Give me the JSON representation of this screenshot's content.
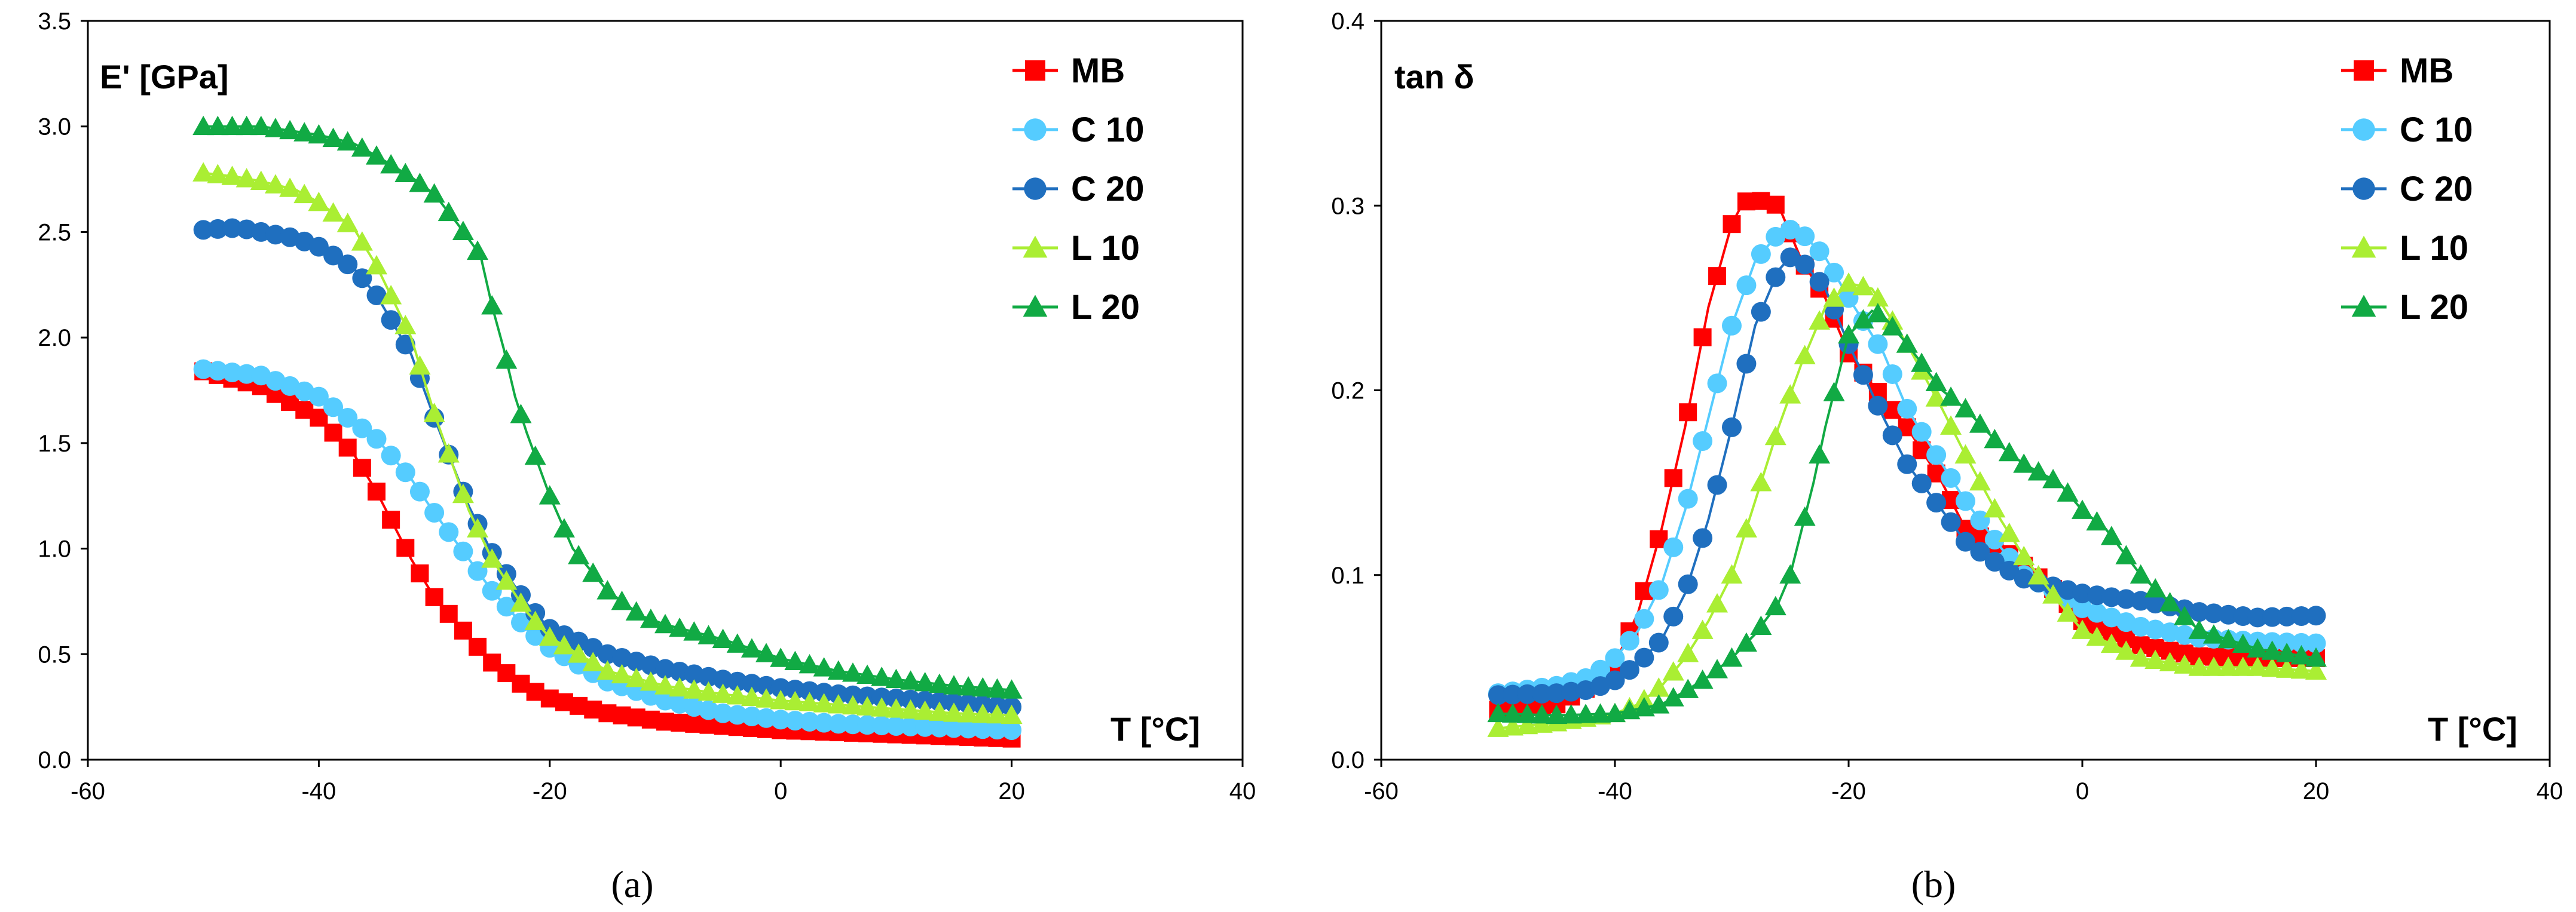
{
  "chart_data": [
    {
      "type": "line",
      "panel": "a",
      "caption": "(a)",
      "ylabel": "E' [GPa]",
      "xlabel": "T [°C]",
      "xlim": [
        -60,
        40
      ],
      "ylim": [
        0,
        3.5
      ],
      "xticks": [
        "-60",
        "-40",
        "-20",
        "0",
        "20",
        "40"
      ],
      "yticks": [
        "0.0",
        "0.5",
        "1.0",
        "1.5",
        "2.0",
        "2.5",
        "3.0",
        "3.5"
      ],
      "legend": "top-right",
      "series": [
        {
          "name": "MB",
          "color": "#ff0000",
          "marker": "square",
          "x": [
            -50,
            -45,
            -40,
            -37,
            -35,
            -32,
            -30,
            -27,
            -25,
            -22,
            -20,
            -15,
            -10,
            -5,
            0,
            5,
            10,
            15,
            20
          ],
          "y": [
            1.84,
            1.77,
            1.62,
            1.45,
            1.27,
            0.95,
            0.77,
            0.58,
            0.46,
            0.34,
            0.29,
            0.22,
            0.18,
            0.16,
            0.14,
            0.13,
            0.12,
            0.11,
            0.1
          ]
        },
        {
          "name": "C 10",
          "color": "#55ccff",
          "marker": "circle",
          "x": [
            -50,
            -45,
            -40,
            -35,
            -32,
            -30,
            -27,
            -25,
            -22,
            -20,
            -15,
            -10,
            -5,
            0,
            5,
            10,
            15,
            20
          ],
          "y": [
            1.85,
            1.82,
            1.72,
            1.52,
            1.33,
            1.17,
            0.95,
            0.8,
            0.62,
            0.53,
            0.37,
            0.28,
            0.22,
            0.19,
            0.17,
            0.16,
            0.15,
            0.14
          ]
        },
        {
          "name": "C 20",
          "color": "#1f6fbf",
          "marker": "circle",
          "x": [
            -50,
            -47,
            -45,
            -42,
            -40,
            -37,
            -35,
            -32,
            -30,
            -27,
            -25,
            -22,
            -20,
            -15,
            -10,
            -5,
            0,
            5,
            10,
            15,
            20
          ],
          "y": [
            2.51,
            2.52,
            2.5,
            2.47,
            2.43,
            2.33,
            2.2,
            1.92,
            1.62,
            1.2,
            0.98,
            0.74,
            0.62,
            0.5,
            0.43,
            0.38,
            0.34,
            0.31,
            0.29,
            0.27,
            0.25
          ]
        },
        {
          "name": "L 10",
          "color": "#aaee33",
          "marker": "triangle",
          "x": [
            -50,
            -47,
            -45,
            -42,
            -40,
            -37,
            -35,
            -32,
            -30,
            -27,
            -25,
            -22,
            -20,
            -15,
            -10,
            -5,
            0,
            5,
            10,
            15,
            20
          ],
          "y": [
            2.78,
            2.76,
            2.74,
            2.7,
            2.64,
            2.52,
            2.34,
            2.0,
            1.64,
            1.18,
            0.95,
            0.7,
            0.58,
            0.42,
            0.35,
            0.31,
            0.28,
            0.26,
            0.24,
            0.22,
            0.21
          ]
        },
        {
          "name": "L 20",
          "color": "#11aa44",
          "marker": "triangle",
          "x": [
            -50,
            -45,
            -40,
            -37,
            -35,
            -32,
            -30,
            -28,
            -26,
            -25,
            -24,
            -23,
            -22,
            -20,
            -18,
            -15,
            -12,
            -10,
            -5,
            0,
            5,
            10,
            15,
            20
          ],
          "y": [
            3.0,
            3.0,
            2.96,
            2.92,
            2.86,
            2.76,
            2.68,
            2.54,
            2.39,
            2.15,
            1.95,
            1.72,
            1.55,
            1.25,
            1.0,
            0.8,
            0.68,
            0.64,
            0.57,
            0.48,
            0.42,
            0.38,
            0.35,
            0.33
          ]
        }
      ]
    },
    {
      "type": "line",
      "panel": "b",
      "caption": "(b)",
      "ylabel": "tan δ",
      "xlabel": "T [°C]",
      "xlim": [
        -60,
        40
      ],
      "ylim": [
        0,
        0.4
      ],
      "xticks": [
        "-60",
        "-40",
        "-20",
        "0",
        "20",
        "40"
      ],
      "yticks": [
        "0.0",
        "0.1",
        "0.2",
        "0.3",
        "0.4"
      ],
      "legend": "top-right",
      "series": [
        {
          "name": "MB",
          "color": "#ff0000",
          "marker": "square",
          "x": [
            -50,
            -45,
            -42,
            -40,
            -38,
            -36,
            -34,
            -32,
            -30,
            -29,
            -28,
            -27,
            -26,
            -25,
            -24,
            -22,
            -20,
            -17,
            -15,
            -12,
            -10,
            -7,
            -5,
            -2,
            0,
            5,
            10,
            15,
            20
          ],
          "y": [
            0.027,
            0.03,
            0.04,
            0.052,
            0.08,
            0.125,
            0.18,
            0.245,
            0.29,
            0.302,
            0.303,
            0.302,
            0.3,
            0.285,
            0.27,
            0.25,
            0.22,
            0.195,
            0.18,
            0.15,
            0.125,
            0.115,
            0.105,
            0.09,
            0.075,
            0.062,
            0.056,
            0.055,
            0.055
          ]
        },
        {
          "name": "C 10",
          "color": "#55ccff",
          "marker": "circle",
          "x": [
            -50,
            -45,
            -42,
            -40,
            -38,
            -36,
            -34,
            -32,
            -30,
            -28,
            -26,
            -25,
            -24,
            -22,
            -20,
            -17,
            -15,
            -12,
            -10,
            -7,
            -5,
            -2,
            0,
            5,
            10,
            15,
            20
          ],
          "y": [
            0.036,
            0.04,
            0.045,
            0.055,
            0.07,
            0.095,
            0.135,
            0.185,
            0.235,
            0.27,
            0.285,
            0.287,
            0.285,
            0.272,
            0.25,
            0.22,
            0.19,
            0.16,
            0.14,
            0.115,
            0.1,
            0.09,
            0.082,
            0.072,
            0.066,
            0.064,
            0.063
          ]
        },
        {
          "name": "C 20",
          "color": "#1f6fbf",
          "marker": "circle",
          "x": [
            -50,
            -45,
            -42,
            -40,
            -38,
            -36,
            -34,
            -32,
            -30,
            -28,
            -26,
            -25,
            -24,
            -22,
            -20,
            -17,
            -15,
            -12,
            -10,
            -7,
            -5,
            -2,
            0,
            5,
            10,
            15,
            20
          ],
          "y": [
            0.035,
            0.036,
            0.038,
            0.043,
            0.052,
            0.065,
            0.09,
            0.13,
            0.18,
            0.235,
            0.265,
            0.272,
            0.27,
            0.255,
            0.225,
            0.185,
            0.16,
            0.135,
            0.118,
            0.105,
            0.098,
            0.093,
            0.09,
            0.086,
            0.08,
            0.077,
            0.078
          ]
        },
        {
          "name": "L 10",
          "color": "#aaee33",
          "marker": "triangle",
          "x": [
            -50,
            -45,
            -40,
            -38,
            -36,
            -34,
            -32,
            -30,
            -28,
            -26,
            -24,
            -22,
            -20,
            -18,
            -17,
            -15,
            -12,
            -10,
            -7,
            -5,
            -2,
            0,
            5,
            10,
            15,
            20
          ],
          "y": [
            0.017,
            0.02,
            0.025,
            0.03,
            0.04,
            0.055,
            0.075,
            0.1,
            0.14,
            0.18,
            0.215,
            0.245,
            0.258,
            0.255,
            0.245,
            0.225,
            0.19,
            0.165,
            0.13,
            0.11,
            0.085,
            0.07,
            0.055,
            0.05,
            0.05,
            0.048
          ]
        },
        {
          "name": "L 20",
          "color": "#11aa44",
          "marker": "triangle",
          "x": [
            -50,
            -45,
            -40,
            -36,
            -34,
            -32,
            -30,
            -28,
            -26,
            -25,
            -24,
            -23,
            -22,
            -21,
            -20,
            -18,
            -17,
            -15,
            -12,
            -10,
            -7,
            -5,
            -2,
            0,
            2,
            5,
            8,
            10,
            15,
            20
          ],
          "y": [
            0.025,
            0.024,
            0.025,
            0.03,
            0.037,
            0.045,
            0.055,
            0.068,
            0.085,
            0.1,
            0.125,
            0.15,
            0.18,
            0.205,
            0.23,
            0.243,
            0.24,
            0.225,
            0.2,
            0.19,
            0.17,
            0.16,
            0.15,
            0.135,
            0.125,
            0.1,
            0.082,
            0.07,
            0.06,
            0.055
          ]
        }
      ]
    }
  ]
}
